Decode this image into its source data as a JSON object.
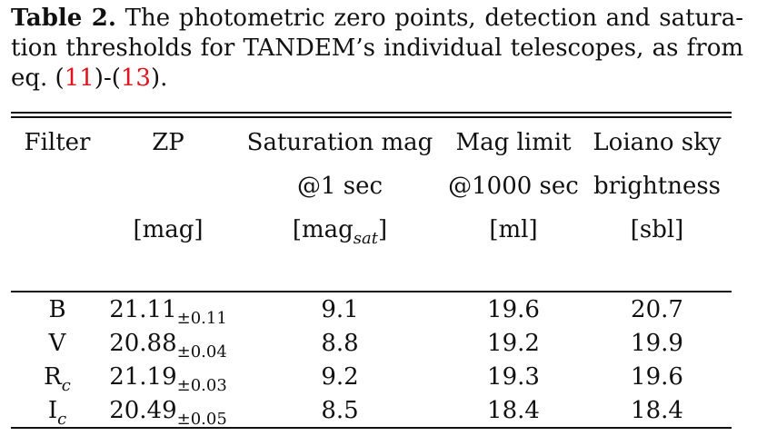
{
  "caption": {
    "label": "Table 2.",
    "text_before_refs": " The photometric zero points, detection and satura-tion thresholds for TANDEM’s individual telescopes, as from eq. (",
    "ref1": "11",
    "mid": ")-(",
    "ref2": "13",
    "text_after_refs": ")."
  },
  "table": {
    "headers": {
      "filter": "Filter",
      "zp": "ZP",
      "zp_unit": "[mag]",
      "sat": "Saturation mag",
      "sat_line2": "@1 sec",
      "sat_unit_main": "[mag",
      "sat_unit_sub": "sat",
      "sat_unit_close": "]",
      "lim": "Mag limit",
      "lim_line2": "@1000 sec",
      "lim_unit": "[ml]",
      "sky": "Loiano sky",
      "sky_line2": "brightness",
      "sky_unit": "[sbl]"
    },
    "rows": [
      {
        "filter": "B",
        "filter_sub": "",
        "zp": "21.11",
        "zp_err": "±0.11",
        "sat": "9.1",
        "lim": "19.6",
        "sky": "20.7"
      },
      {
        "filter": "V",
        "filter_sub": "",
        "zp": "20.88",
        "zp_err": "±0.04",
        "sat": "8.8",
        "lim": "19.2",
        "sky": "19.9"
      },
      {
        "filter": "R",
        "filter_sub": "c",
        "zp": "21.19",
        "zp_err": "±0.03",
        "sat": "9.2",
        "lim": "19.3",
        "sky": "19.6"
      },
      {
        "filter": "I",
        "filter_sub": "c",
        "zp": "20.49",
        "zp_err": "±0.05",
        "sat": "8.5",
        "lim": "18.4",
        "sky": "18.4"
      }
    ]
  }
}
